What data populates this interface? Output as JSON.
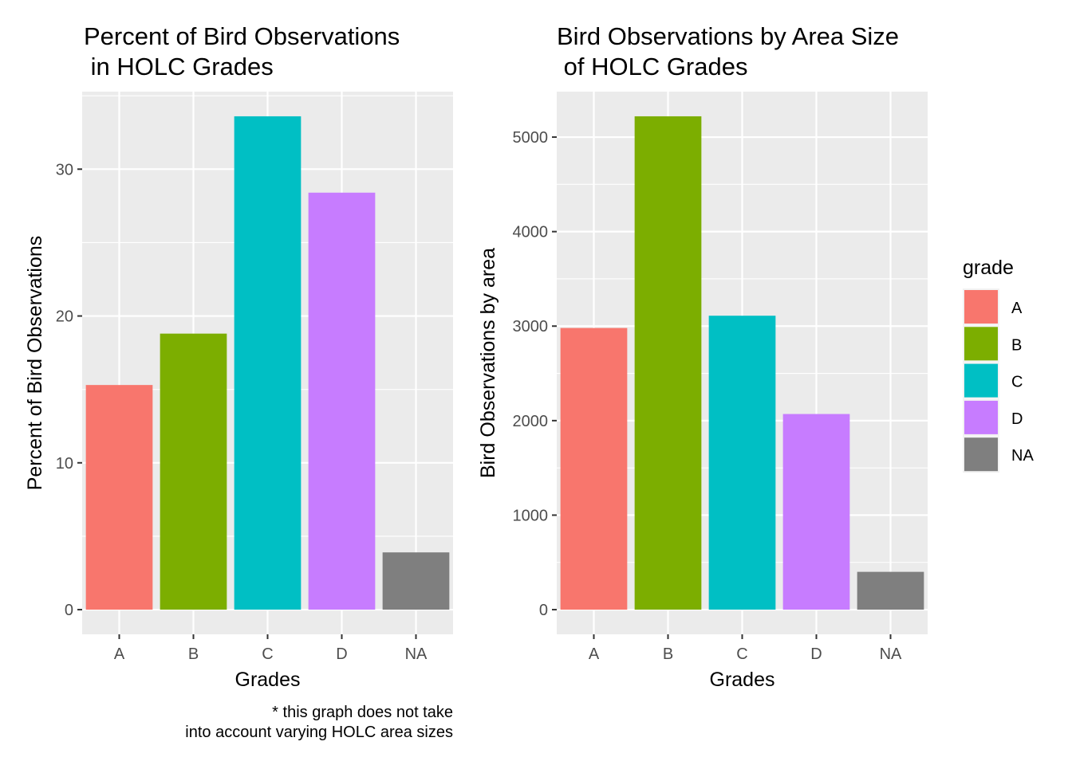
{
  "legend": {
    "title": "grade",
    "placement": "right",
    "items": [
      {
        "label": "A",
        "color": "#F8766D"
      },
      {
        "label": "B",
        "color": "#7CAE00"
      },
      {
        "label": "C",
        "color": "#00BFC4"
      },
      {
        "label": "D",
        "color": "#C77CFF"
      },
      {
        "label": "NA",
        "color": "#7F7F7F"
      }
    ]
  },
  "chart_data": [
    {
      "type": "bar",
      "title": "Percent of Bird Observations\n in HOLC Grades",
      "xlabel": "Grades",
      "ylabel": "Percent of Bird Observations",
      "categories": [
        "A",
        "B",
        "C",
        "D",
        "NA"
      ],
      "values": [
        15.3,
        18.8,
        33.6,
        28.4,
        3.9
      ],
      "colors": [
        "#F8766D",
        "#7CAE00",
        "#00BFC4",
        "#C77CFF",
        "#7F7F7F"
      ],
      "ylim": [
        -1.68,
        35.28
      ],
      "yticks": [
        0,
        10,
        20,
        30
      ],
      "grid": true,
      "caption": "* this graph does not take\ninto account varying HOLC area sizes"
    },
    {
      "type": "bar",
      "title": "Bird Observations by Area Size\n of HOLC Grades",
      "xlabel": "Grades",
      "ylabel": "Bird Observations by area",
      "categories": [
        "A",
        "B",
        "C",
        "D",
        "NA"
      ],
      "values": [
        2980,
        5220,
        3110,
        2070,
        400
      ],
      "colors": [
        "#F8766D",
        "#7CAE00",
        "#00BFC4",
        "#C77CFF",
        "#7F7F7F"
      ],
      "ylim": [
        -261,
        5481
      ],
      "yticks": [
        0,
        1000,
        2000,
        3000,
        4000,
        5000
      ],
      "grid": true
    }
  ]
}
